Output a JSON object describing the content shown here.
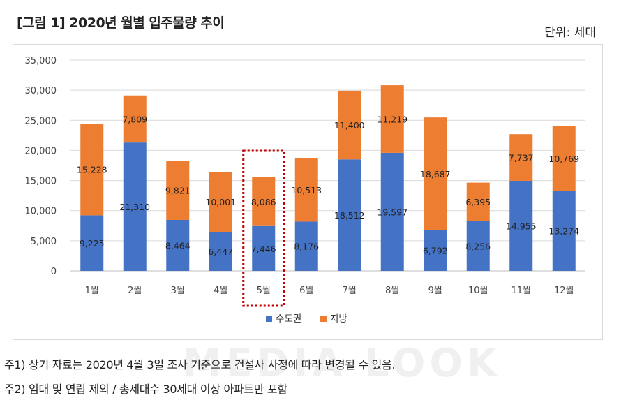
{
  "title": "[그림 1] 2020년 월별 입주물량 추이",
  "unit": "단위: 세대",
  "chart_data": {
    "type": "bar",
    "stacked": true,
    "categories": [
      "1월",
      "2월",
      "3월",
      "4월",
      "5월",
      "6월",
      "7월",
      "8월",
      "9월",
      "10월",
      "11월",
      "12월"
    ],
    "series": [
      {
        "name": "수도권",
        "color": "#4472C4",
        "values": [
          9225,
          21310,
          8464,
          6447,
          7446,
          8176,
          18512,
          19597,
          6792,
          8256,
          14955,
          13274
        ],
        "labels": [
          "9,225",
          "21,310",
          "8,464",
          "6,447",
          "7,446",
          "8,176",
          "18,512",
          "19,597",
          "6,792",
          "8,256",
          "14,955",
          "13,274"
        ]
      },
      {
        "name": "지방",
        "color": "#ED7D31",
        "values": [
          15228,
          7809,
          9821,
          10001,
          8086,
          10513,
          11400,
          11219,
          18687,
          6395,
          7737,
          10769
        ],
        "labels": [
          "15,228",
          "7,809",
          "9,821",
          "10,001",
          "8,086",
          "10,513",
          "11,400",
          "11,219",
          "18,687",
          "6,395",
          "7,737",
          "10,769"
        ]
      }
    ],
    "ylim": [
      0,
      35000
    ],
    "yticks": [
      0,
      5000,
      10000,
      15000,
      20000,
      25000,
      30000,
      35000
    ],
    "ytick_labels": [
      "0",
      "5,000",
      "10,000",
      "15,000",
      "20,000",
      "25,000",
      "30,000",
      "35,000"
    ],
    "grid": true,
    "legend": "bottom-center",
    "highlighted_category": "5월"
  },
  "notes": [
    "주1) 상기 자료는 2020년 4월 3일 조사 기준으로 건설사 사정에 따라 변경될 수 있음.",
    "주2) 임대 및 연립 제외 / 총세대수 30세대 이상 아파트만 포함"
  ],
  "watermark": "MEDIA LOOK"
}
